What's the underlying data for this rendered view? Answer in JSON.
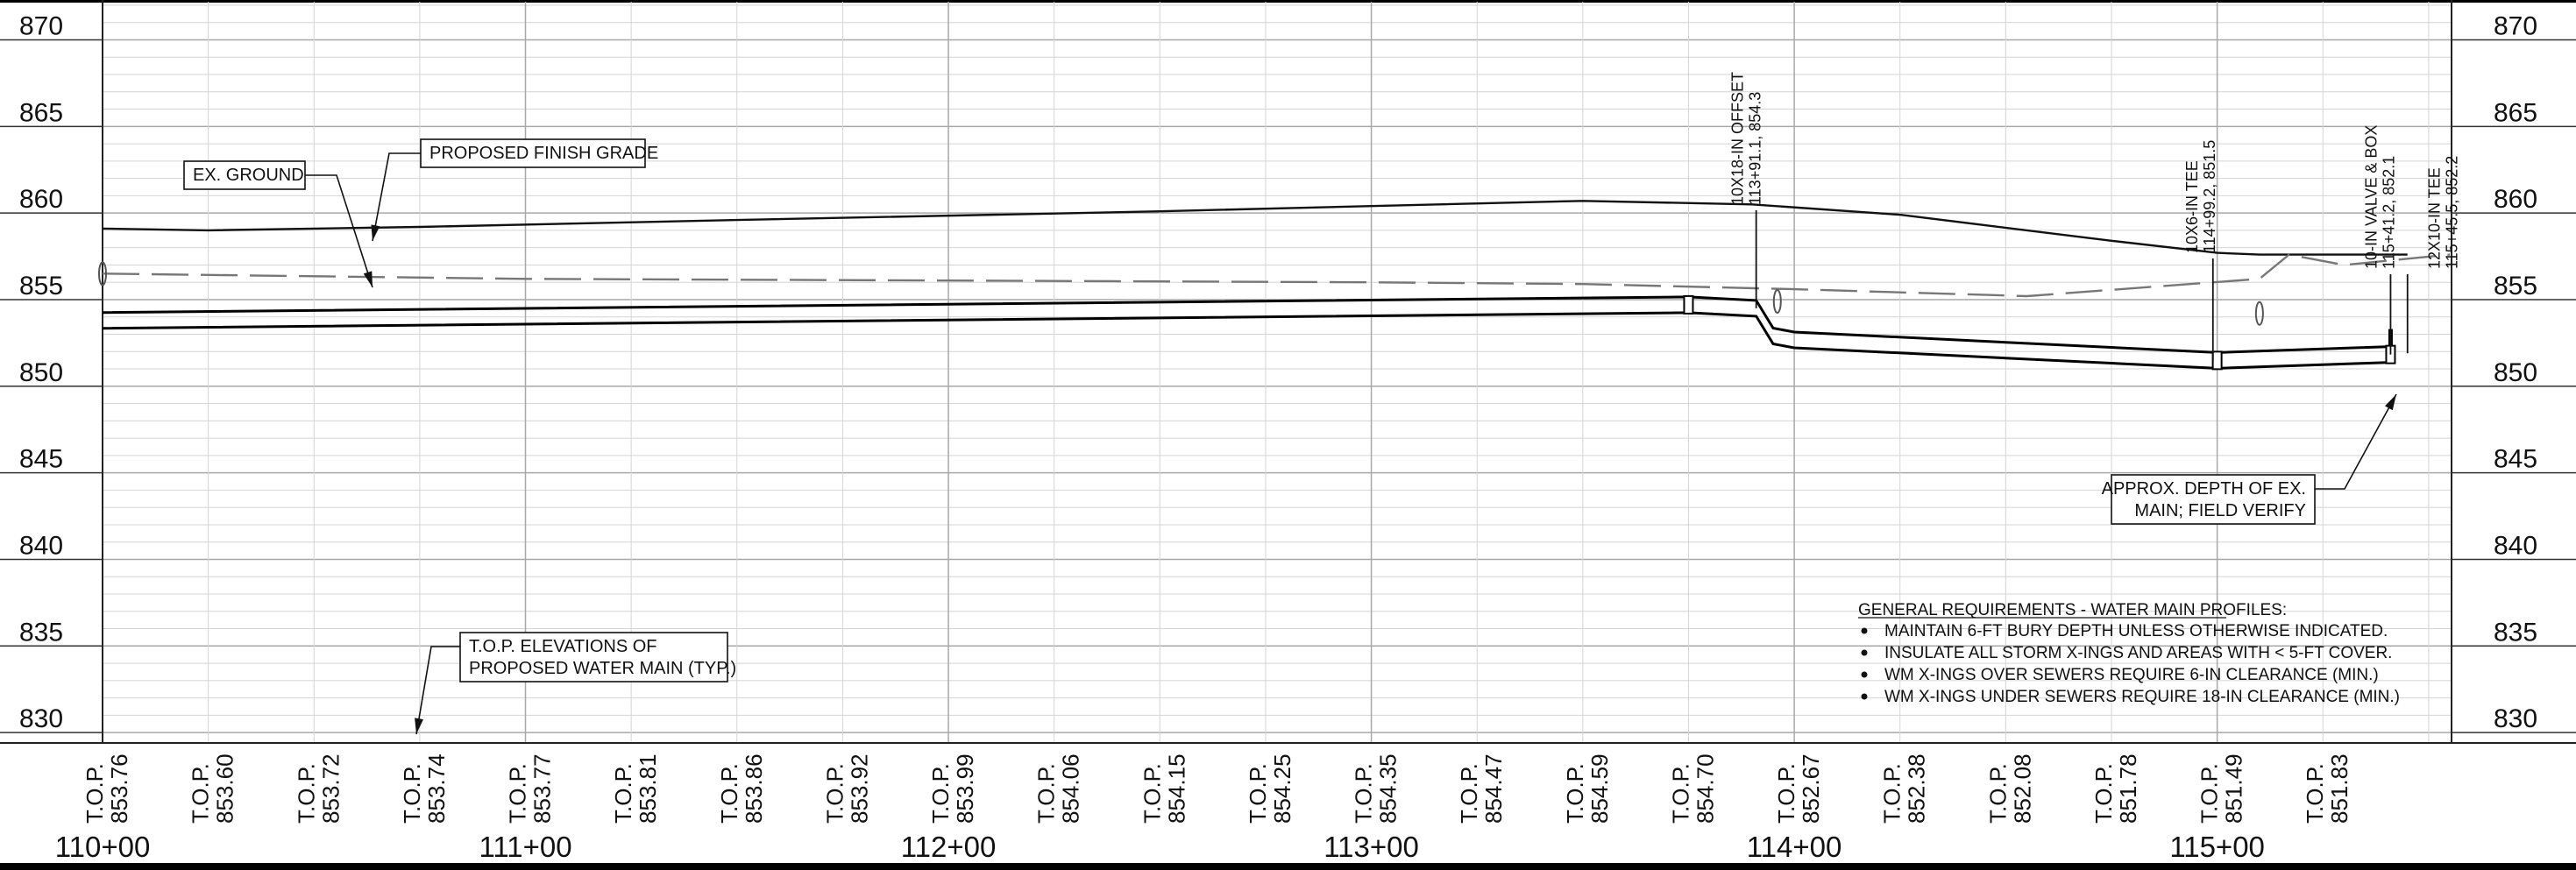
{
  "chart_data": {
    "type": "line",
    "title": "",
    "xlabel": "",
    "ylabel": "",
    "xlim": [
      11000,
      11555
    ],
    "ylim": [
      830,
      872
    ],
    "grid": true,
    "elevation_ticks": [
      "870",
      "865",
      "860",
      "855",
      "850",
      "845",
      "840",
      "835",
      "830"
    ],
    "station_ticks": [
      {
        "x": 11000,
        "label": "110+00"
      },
      {
        "x": 11100,
        "label": "111+00"
      },
      {
        "x": 11200,
        "label": "112+00"
      },
      {
        "x": 11300,
        "label": "113+00"
      },
      {
        "x": 11400,
        "label": "114+00"
      },
      {
        "x": 11500,
        "label": "115+00"
      }
    ],
    "top_elevations": [
      {
        "x": 11000,
        "label": "T.O.P.",
        "value": "853.76"
      },
      {
        "x": 11025,
        "label": "T.O.P.",
        "value": "853.60"
      },
      {
        "x": 11050,
        "label": "T.O.P.",
        "value": "853.72"
      },
      {
        "x": 11075,
        "label": "T.O.P.",
        "value": "853.74"
      },
      {
        "x": 11100,
        "label": "T.O.P.",
        "value": "853.77"
      },
      {
        "x": 11125,
        "label": "T.O.P.",
        "value": "853.81"
      },
      {
        "x": 11150,
        "label": "T.O.P.",
        "value": "853.86"
      },
      {
        "x": 11175,
        "label": "T.O.P.",
        "value": "853.92"
      },
      {
        "x": 11200,
        "label": "T.O.P.",
        "value": "853.99"
      },
      {
        "x": 11225,
        "label": "T.O.P.",
        "value": "854.06"
      },
      {
        "x": 11250,
        "label": "T.O.P.",
        "value": "854.15"
      },
      {
        "x": 11275,
        "label": "T.O.P.",
        "value": "854.25"
      },
      {
        "x": 11300,
        "label": "T.O.P.",
        "value": "854.35"
      },
      {
        "x": 11325,
        "label": "T.O.P.",
        "value": "854.47"
      },
      {
        "x": 11350,
        "label": "T.O.P.",
        "value": "854.59"
      },
      {
        "x": 11375,
        "label": "T.O.P.",
        "value": "854.70"
      },
      {
        "x": 11400,
        "label": "T.O.P.",
        "value": "852.67"
      },
      {
        "x": 11425,
        "label": "T.O.P.",
        "value": "852.38"
      },
      {
        "x": 11450,
        "label": "T.O.P.",
        "value": "852.08"
      },
      {
        "x": 11475,
        "label": "T.O.P.",
        "value": "851.78"
      },
      {
        "x": 11500,
        "label": "T.O.P.",
        "value": "851.49"
      },
      {
        "x": 11525,
        "label": "T.O.P.",
        "value": "851.83"
      }
    ],
    "series": [
      {
        "name": "PROPOSED FINISH GRADE",
        "style": "solid",
        "points": [
          [
            11000,
            859.1
          ],
          [
            11025,
            859.0
          ],
          [
            11075,
            859.2
          ],
          [
            11150,
            859.6
          ],
          [
            11250,
            860.1
          ],
          [
            11300,
            860.4
          ],
          [
            11350,
            860.7
          ],
          [
            11390,
            860.5
          ],
          [
            11425,
            859.9
          ],
          [
            11475,
            858.4
          ],
          [
            11500,
            857.7
          ],
          [
            11510,
            857.6
          ],
          [
            11545,
            857.6
          ]
        ]
      },
      {
        "name": "EX. GROUND",
        "style": "dashed",
        "points": [
          [
            11000,
            856.5
          ],
          [
            11100,
            856.2
          ],
          [
            11200,
            856.1
          ],
          [
            11300,
            856.0
          ],
          [
            11350,
            855.9
          ],
          [
            11400,
            855.6
          ],
          [
            11455,
            855.2
          ],
          [
            11510,
            856.2
          ],
          [
            11517,
            857.6
          ],
          [
            11530,
            857.0
          ],
          [
            11555,
            857.6
          ]
        ]
      },
      {
        "name": "PROPOSED WATER MAIN",
        "style": "pipe",
        "points": [
          [
            11000,
            853.8
          ],
          [
            11375,
            854.7
          ],
          [
            11391,
            854.5
          ],
          [
            11395,
            852.9
          ],
          [
            11400,
            852.67
          ],
          [
            11500,
            851.49
          ],
          [
            11541,
            851.83
          ]
        ]
      }
    ],
    "annotations": [
      {
        "id": "ex_ground",
        "text": [
          "EX. GROUND"
        ]
      },
      {
        "id": "finish_grade",
        "text": [
          "PROPOSED FINISH GRADE"
        ]
      },
      {
        "id": "top_elev",
        "text": [
          "T.O.P.  ELEVATIONS OF",
          "PROPOSED WATER MAIN (TYP.)"
        ]
      },
      {
        "id": "approx_depth",
        "text": [
          "APPROX. DEPTH OF EX.",
          "MAIN; FIELD VERIFY"
        ]
      }
    ],
    "vertical_callouts": [
      {
        "x": 11391,
        "lines": [
          "10X18-IN OFFSET",
          "113+91.1, 854.3"
        ]
      },
      {
        "x": 11499,
        "lines": [
          "10X6-IN TEE",
          "114+99.2, 851.5"
        ]
      },
      {
        "x": 11541,
        "lines": [
          "10-IN VALVE & BOX",
          "115+41.2, 852.1"
        ]
      },
      {
        "x": 11545,
        "lines": [
          "12X10-IN TEE",
          "115+45.5, 852.2"
        ]
      }
    ],
    "notes": {
      "title": "GENERAL REQUIREMENTS - WATER MAIN PROFILES:",
      "items": [
        "MAINTAIN 6-FT BURY DEPTH UNLESS OTHERWISE INDICATED.",
        "INSULATE ALL STORM X-INGS AND AREAS WITH < 5-FT COVER.",
        "WM X-INGS OVER SEWERS REQUIRE 6-IN CLEARANCE (MIN.)",
        "WM X-INGS UNDER SEWERS REQUIRE 18-IN CLEARANCE (MIN.)"
      ]
    },
    "structures": [
      {
        "x": 11000,
        "y": 856.5
      },
      {
        "x": 11396,
        "y": 854.9
      },
      {
        "x": 11510,
        "y": 854.2
      }
    ]
  }
}
